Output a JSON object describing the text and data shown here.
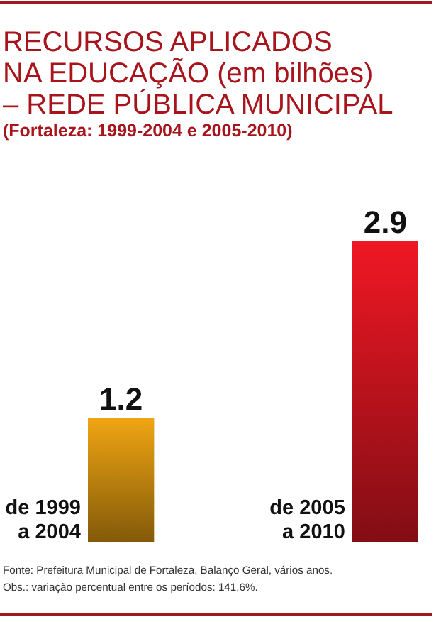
{
  "chart_data": {
    "type": "bar",
    "title": "RECURSOS APLICADOS\nNA EDUCAÇÃO (em bilhões)\n– REDE PÚBLICA MUNICIPAL",
    "subtitle": "(Fortaleza: 1999-2004 e 2005-2010)",
    "categories": [
      "de 1999 a 2004",
      "de 2005 a 2010"
    ],
    "values": [
      1.2,
      2.9
    ],
    "colors": [
      "#c98a10",
      "#c8141e"
    ],
    "data_labels": true,
    "annotations": [
      "Fonte: Prefeitura Municipal de Fortaleza, Balanço Geral, vários anos.",
      "Obs.: variação percentual entre os períodos: 141,6%."
    ]
  }
}
